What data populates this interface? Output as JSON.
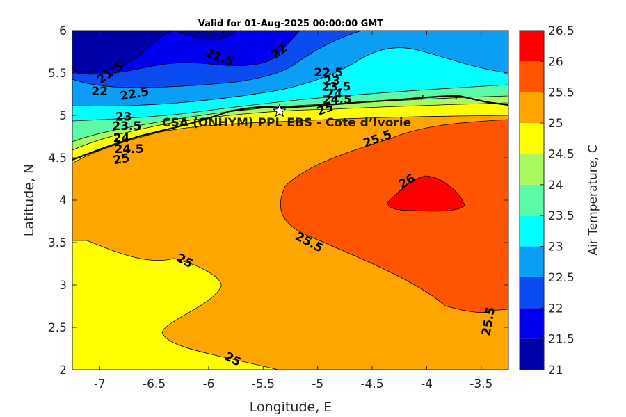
{
  "chart_data": {
    "type": "heatmap",
    "title": "Valid for 01-Aug-2025 00:00:00 GMT",
    "xlabel": "Longitude, E",
    "ylabel": "Latitude, N",
    "xlim": [
      -7.25,
      -3.25
    ],
    "ylim": [
      2,
      6
    ],
    "x_ticks": [
      -7,
      -6.5,
      -6,
      -5.5,
      -5,
      -4.5,
      -4,
      -3.5
    ],
    "y_ticks": [
      2,
      2.5,
      3,
      3.5,
      4,
      4.5,
      5,
      5.5,
      6
    ],
    "grid": false,
    "colorbar": {
      "label": "Air Temperature, C",
      "levels": [
        21,
        21.5,
        22,
        22.5,
        23,
        23.5,
        24,
        24.5,
        25,
        25.5,
        26,
        26.5
      ],
      "colors": [
        "#0000a8",
        "#0000ee",
        "#0a4cf0",
        "#0a9ef4",
        "#00ffff",
        "#5cfaa6",
        "#a8f860",
        "#ffff00",
        "#ffa500",
        "#ff5500",
        "#ff0000",
        "#a80000"
      ]
    },
    "site": {
      "name": "CSA (ONHYM) PPL EBS - Cote d’Ivorie",
      "lon": -5.35,
      "lat": 5.05
    },
    "contour_labels": [
      {
        "text": "21.5",
        "lon": -5.9,
        "lat": 5.68,
        "rot": 20
      },
      {
        "text": "21.5",
        "lon": -6.9,
        "lat": 5.5,
        "rot": -35
      },
      {
        "text": "22",
        "lon": -5.35,
        "lat": 5.75,
        "rot": -35
      },
      {
        "text": "22",
        "lon": -7.0,
        "lat": 5.28,
        "rot": 0
      },
      {
        "text": "22.5",
        "lon": -6.68,
        "lat": 5.25,
        "rot": -10
      },
      {
        "text": "22.5",
        "lon": -4.9,
        "lat": 5.5,
        "rot": 0
      },
      {
        "text": "23",
        "lon": -4.87,
        "lat": 5.4,
        "rot": 0
      },
      {
        "text": "23.5",
        "lon": -4.83,
        "lat": 5.33,
        "rot": 0
      },
      {
        "text": "24",
        "lon": -4.85,
        "lat": 5.25,
        "rot": 0
      },
      {
        "text": "24.5",
        "lon": -4.82,
        "lat": 5.18,
        "rot": 0
      },
      {
        "text": "25",
        "lon": -4.93,
        "lat": 5.07,
        "rot": -20
      },
      {
        "text": "23",
        "lon": -6.78,
        "lat": 4.98,
        "rot": 0
      },
      {
        "text": "23.5",
        "lon": -6.75,
        "lat": 4.87,
        "rot": 0
      },
      {
        "text": "24",
        "lon": -6.8,
        "lat": 4.73,
        "rot": 0
      },
      {
        "text": "24.5",
        "lon": -6.73,
        "lat": 4.6,
        "rot": 0
      },
      {
        "text": "25",
        "lon": -6.8,
        "lat": 4.48,
        "rot": -10
      },
      {
        "text": "25.5",
        "lon": -4.45,
        "lat": 4.72,
        "rot": -20
      },
      {
        "text": "26",
        "lon": -4.18,
        "lat": 4.22,
        "rot": -30
      },
      {
        "text": "25.5",
        "lon": -5.08,
        "lat": 3.5,
        "rot": 28
      },
      {
        "text": "25",
        "lon": -6.22,
        "lat": 3.28,
        "rot": 28
      },
      {
        "text": "25",
        "lon": -5.78,
        "lat": 2.12,
        "rot": 28
      },
      {
        "text": "25.5",
        "lon": -3.43,
        "lat": 2.57,
        "rot": -80
      }
    ]
  }
}
